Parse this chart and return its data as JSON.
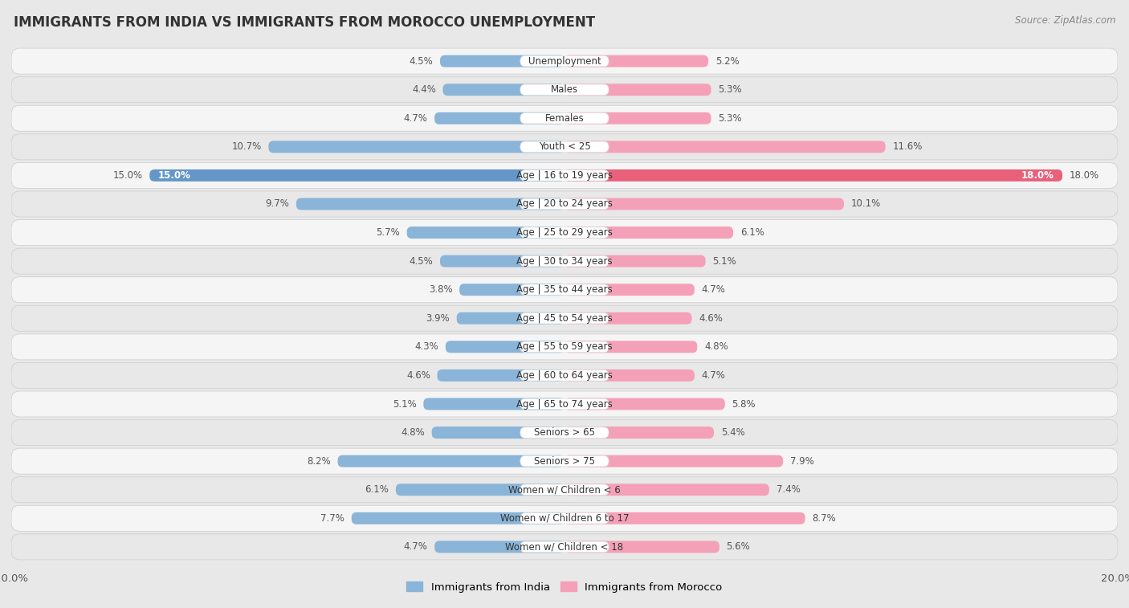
{
  "title": "IMMIGRANTS FROM INDIA VS IMMIGRANTS FROM MOROCCO UNEMPLOYMENT",
  "source": "Source: ZipAtlas.com",
  "categories": [
    "Unemployment",
    "Males",
    "Females",
    "Youth < 25",
    "Age | 16 to 19 years",
    "Age | 20 to 24 years",
    "Age | 25 to 29 years",
    "Age | 30 to 34 years",
    "Age | 35 to 44 years",
    "Age | 45 to 54 years",
    "Age | 55 to 59 years",
    "Age | 60 to 64 years",
    "Age | 65 to 74 years",
    "Seniors > 65",
    "Seniors > 75",
    "Women w/ Children < 6",
    "Women w/ Children 6 to 17",
    "Women w/ Children < 18"
  ],
  "india_values": [
    4.5,
    4.4,
    4.7,
    10.7,
    15.0,
    9.7,
    5.7,
    4.5,
    3.8,
    3.9,
    4.3,
    4.6,
    5.1,
    4.8,
    8.2,
    6.1,
    7.7,
    4.7
  ],
  "morocco_values": [
    5.2,
    5.3,
    5.3,
    11.6,
    18.0,
    10.1,
    6.1,
    5.1,
    4.7,
    4.6,
    4.8,
    4.7,
    5.8,
    5.4,
    7.9,
    7.4,
    8.7,
    5.6
  ],
  "india_color": "#8ab4d8",
  "morocco_color": "#f4a0b8",
  "india_highlight_color": "#6497c8",
  "morocco_highlight_color": "#e8607a",
  "highlight_row": 4,
  "xlim": 20.0,
  "legend_india": "Immigrants from India",
  "legend_morocco": "Immigrants from Morocco",
  "fig_bg": "#e8e8e8",
  "row_bg_light": "#f5f5f5",
  "row_bg_dark": "#e8e8e8",
  "label_fontsize": 8.5,
  "title_fontsize": 12,
  "source_fontsize": 8.5,
  "tick_fontsize": 9.5
}
